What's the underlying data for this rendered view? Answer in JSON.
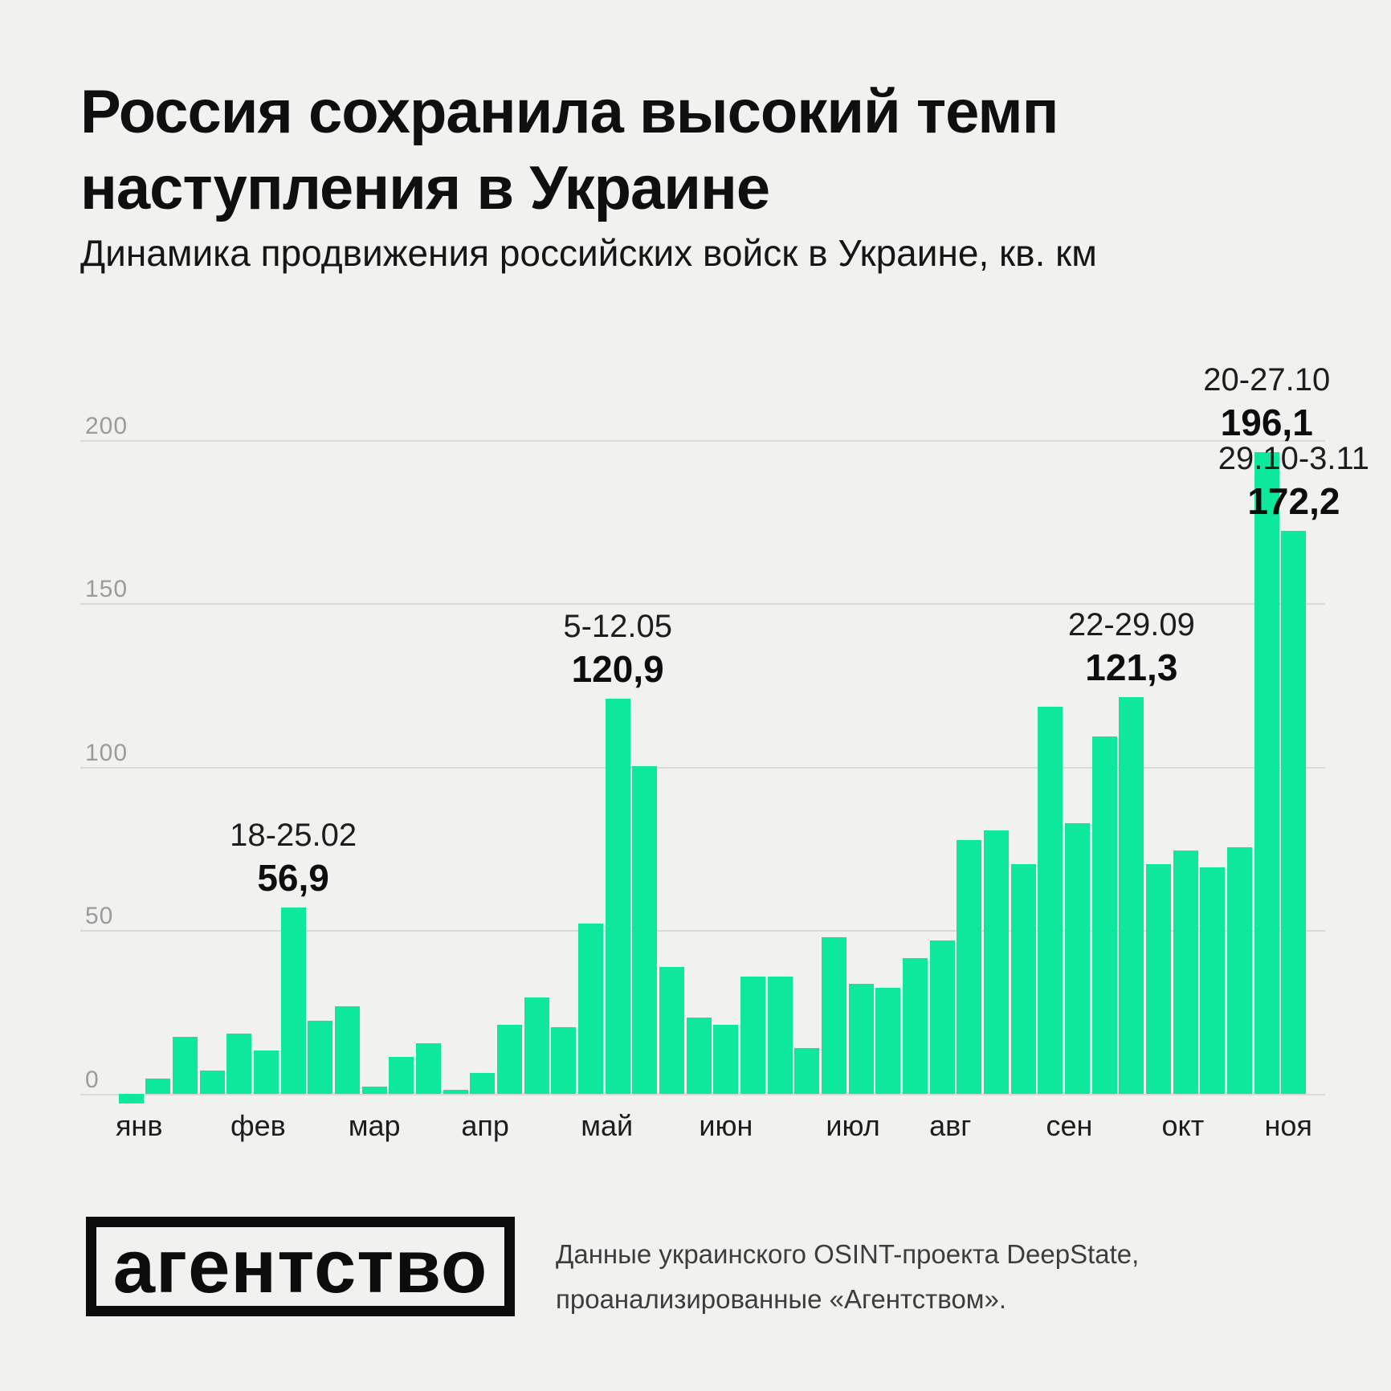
{
  "title": {
    "line1": "Россия сохранила высокий темп",
    "line2": "наступления в Украине"
  },
  "subtitle": "Динамика продвижения российских войск в Украине, кв. км",
  "chart_data": {
    "type": "bar",
    "title": "Динамика продвижения российских войск в Украине",
    "unit": "кв. км",
    "xlabel": "",
    "ylabel": "",
    "ylim": [
      0,
      200
    ],
    "yticks": [
      0,
      50,
      100,
      150,
      200
    ],
    "grid": "horizontal",
    "bar_color": "#0ee89b",
    "categories_note": "weekly advances, January–early November",
    "months": [
      {
        "label": "янв",
        "i": 0.3
      },
      {
        "label": "фев",
        "i": 4.7
      },
      {
        "label": "мар",
        "i": 9.0
      },
      {
        "label": "апр",
        "i": 13.1
      },
      {
        "label": "май",
        "i": 17.6
      },
      {
        "label": "июн",
        "i": 22.0
      },
      {
        "label": "июл",
        "i": 26.7
      },
      {
        "label": "авг",
        "i": 30.3
      },
      {
        "label": "сен",
        "i": 34.7
      },
      {
        "label": "окт",
        "i": 38.9
      },
      {
        "label": "ноя",
        "i": 42.8
      }
    ],
    "values": [
      -3.0,
      4.7,
      17.5,
      7.2,
      18.3,
      13.2,
      56.9,
      22.4,
      26.8,
      2.1,
      11.3,
      15.4,
      1.2,
      6.4,
      21.1,
      29.5,
      20.4,
      52.1,
      120.9,
      100.2,
      38.8,
      23.4,
      21.1,
      35.9,
      35.9,
      14.0,
      48.0,
      33.6,
      32.4,
      41.6,
      47.0,
      77.6,
      80.6,
      70.2,
      118.4,
      82.7,
      109.4,
      121.3,
      70.2,
      74.4,
      69.3,
      75.4,
      196.1,
      172.2
    ],
    "annotations": [
      {
        "index": 6,
        "date": "18-25.02",
        "value": "56,9"
      },
      {
        "index": 18,
        "date": "5-12.05",
        "value": "120,9"
      },
      {
        "index": 37,
        "date": "22-29.09",
        "value": "121,3"
      },
      {
        "index": 42,
        "date": "20-27.10",
        "value": "196,1"
      },
      {
        "index": 43,
        "date": "29.10-3.11",
        "value": "172,2"
      }
    ]
  },
  "footer": {
    "logo_text": "агентство",
    "source_line1": "Данные украинского OSINT-проекта DeepState,",
    "source_line2": "проанализированные «Агентством»."
  },
  "colors": {
    "background": "#f1f1ef",
    "bar": "#0ee89b",
    "grid": "#d9d9d7",
    "axis_text": "#9b9b9b",
    "text": "#111111"
  }
}
